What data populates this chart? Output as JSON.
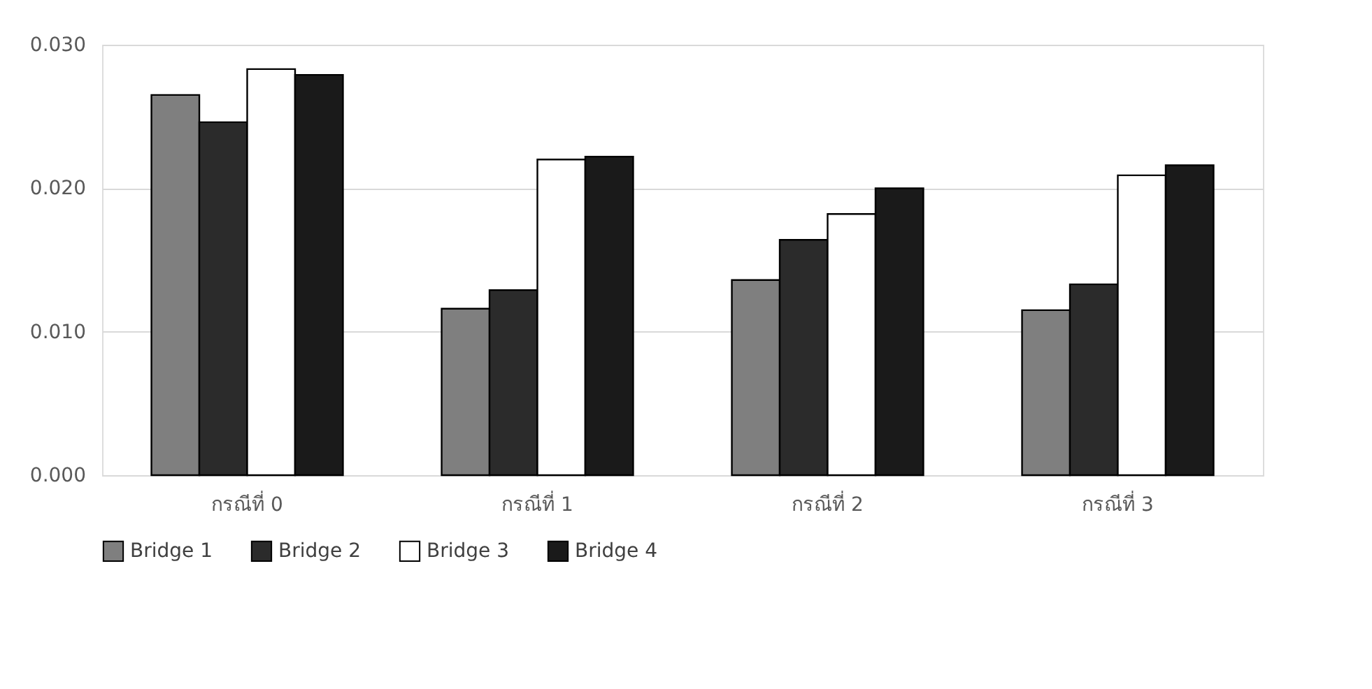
{
  "chart_data": {
    "type": "bar",
    "categories": [
      "กรณีที่ 0",
      "กรณีที่ 1",
      "กรณีที่ 2",
      "กรณีที่ 3"
    ],
    "series": [
      {
        "name": "Bridge 1",
        "color": "#7f7f7f",
        "values": [
          0.0265,
          0.0116,
          0.0136,
          0.0115
        ]
      },
      {
        "name": "Bridge 2",
        "color": "#2b2b2b",
        "values": [
          0.0246,
          0.0129,
          0.0164,
          0.0133
        ]
      },
      {
        "name": "Bridge 3",
        "color": "#ffffff",
        "values": [
          0.0283,
          0.022,
          0.0182,
          0.0209
        ]
      },
      {
        "name": "Bridge 4",
        "color": "#1a1a1a",
        "values": [
          0.0279,
          0.0222,
          0.02,
          0.0216
        ]
      }
    ],
    "ylim": [
      0,
      0.03
    ],
    "yticks": [
      {
        "value": 0,
        "label": "0.000"
      },
      {
        "value": 0.01,
        "label": "0.010"
      },
      {
        "value": 0.02,
        "label": "0.020"
      },
      {
        "value": 0.03,
        "label": "0.030"
      }
    ],
    "grid": "y",
    "legend": "bottom"
  }
}
